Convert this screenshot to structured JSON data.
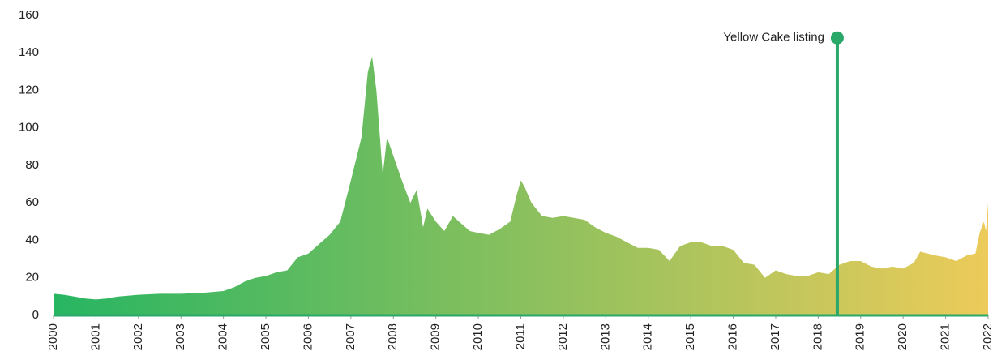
{
  "chart_data": {
    "type": "area",
    "x": [
      2000.0,
      2000.25,
      2000.5,
      2000.75,
      2001.0,
      2001.25,
      2001.5,
      2001.75,
      2002.0,
      2002.5,
      2003.0,
      2003.5,
      2004.0,
      2004.25,
      2004.5,
      2004.75,
      2005.0,
      2005.25,
      2005.5,
      2005.75,
      2006.0,
      2006.25,
      2006.5,
      2006.75,
      2007.0,
      2007.25,
      2007.4,
      2007.5,
      2007.6,
      2007.75,
      2007.85,
      2008.0,
      2008.2,
      2008.4,
      2008.55,
      2008.7,
      2008.8,
      2009.0,
      2009.2,
      2009.4,
      2009.6,
      2009.8,
      2010.0,
      2010.25,
      2010.5,
      2010.75,
      2010.9,
      2011.0,
      2011.1,
      2011.25,
      2011.5,
      2011.75,
      2012.0,
      2012.25,
      2012.5,
      2012.75,
      2013.0,
      2013.25,
      2013.5,
      2013.75,
      2014.0,
      2014.25,
      2014.5,
      2014.75,
      2015.0,
      2015.25,
      2015.5,
      2015.75,
      2016.0,
      2016.25,
      2016.5,
      2016.75,
      2017.0,
      2017.25,
      2017.5,
      2017.75,
      2018.0,
      2018.25,
      2018.5,
      2018.75,
      2019.0,
      2019.25,
      2019.5,
      2019.75,
      2020.0,
      2020.25,
      2020.4,
      2020.75,
      2021.0,
      2021.25,
      2021.5,
      2021.7,
      2021.8,
      2021.9,
      2021.95,
      2022.0
    ],
    "values": [
      11.5,
      11,
      10,
      9,
      8.5,
      9,
      10,
      10.5,
      11,
      11.5,
      11.5,
      12,
      13,
      15,
      18,
      20,
      21,
      23,
      24,
      31,
      33,
      38,
      43,
      50,
      72,
      95,
      130,
      138,
      120,
      75,
      95,
      85,
      72,
      60,
      67,
      47,
      57,
      50,
      45,
      53,
      49,
      45,
      44,
      43,
      46,
      50,
      64,
      72,
      68,
      60,
      53,
      52,
      53,
      52,
      51,
      47,
      44,
      42,
      39,
      36,
      36,
      35,
      29,
      37,
      39,
      39,
      37,
      37,
      35,
      28,
      27,
      20,
      24,
      22,
      21,
      21,
      23,
      22,
      27,
      29,
      29,
      26,
      25,
      26,
      25,
      28,
      34,
      32,
      31,
      29,
      32,
      33,
      44,
      50,
      45,
      60
    ],
    "colors": [
      "#27b562",
      "#eccb5a"
    ],
    "baseline_color": "#2aa86a",
    "xlim": [
      2000,
      2022
    ],
    "xticks": [
      2000,
      2001,
      2002,
      2003,
      2004,
      2005,
      2006,
      2007,
      2008,
      2009,
      2010,
      2011,
      2012,
      2013,
      2014,
      2015,
      2016,
      2017,
      2018,
      2019,
      2020,
      2021,
      2022
    ],
    "ylim": [
      0,
      160
    ],
    "yticks": [
      0,
      20,
      40,
      60,
      80,
      100,
      120,
      140,
      160
    ],
    "annotation": {
      "text": "Yellow Cake listing",
      "x": 2018.45,
      "y": 148,
      "color": "#2aa86a"
    }
  }
}
